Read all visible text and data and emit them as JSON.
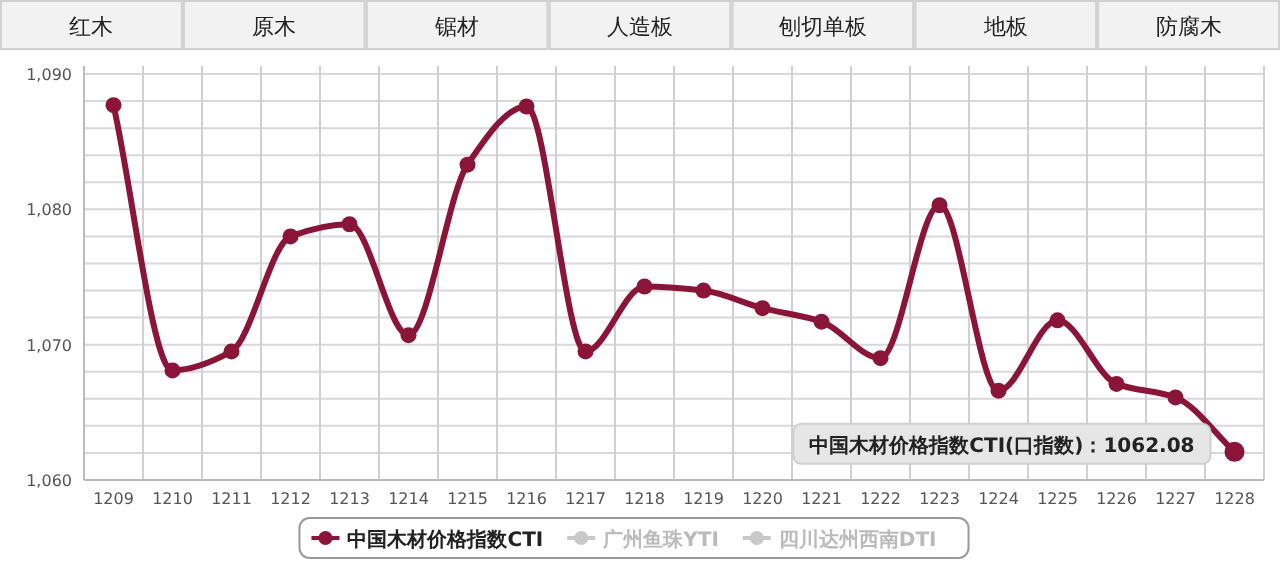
{
  "chart_data": {
    "type": "line",
    "categories": [
      "1209",
      "1210",
      "1211",
      "1212",
      "1213",
      "1214",
      "1215",
      "1216",
      "1217",
      "1218",
      "1219",
      "1220",
      "1221",
      "1222",
      "1223",
      "1224",
      "1225",
      "1226",
      "1227",
      "1228"
    ],
    "series": [
      {
        "name": "中国木材价格指数CTI",
        "color": "#8b1538",
        "values": [
          1087.7,
          1068.1,
          1069.5,
          1078.0,
          1078.9,
          1070.7,
          1083.3,
          1087.6,
          1069.5,
          1074.3,
          1074.0,
          1072.7,
          1071.7,
          1069.0,
          1080.3,
          1066.6,
          1071.8,
          1067.1,
          1066.1,
          1062.08
        ]
      },
      {
        "name": "广州鱼珠YTI",
        "color": "#c8c8c8",
        "values": [
          null,
          null,
          null,
          null,
          null,
          null,
          null,
          null,
          null,
          null,
          null,
          null,
          null,
          null,
          null,
          null,
          null,
          null,
          null,
          null
        ]
      },
      {
        "name": "四川达州西南DTI",
        "color": "#c8c8c8",
        "values": [
          null,
          null,
          null,
          null,
          null,
          null,
          null,
          null,
          null,
          null,
          null,
          null,
          null,
          null,
          null,
          null,
          null,
          null,
          null,
          null
        ]
      }
    ],
    "ylim": [
      1060,
      1090
    ],
    "yticks": [
      {
        "value": 1060,
        "label": "1,060"
      },
      {
        "value": 1062,
        "label": null
      },
      {
        "value": 1064,
        "label": null
      },
      {
        "value": 1066,
        "label": null
      },
      {
        "value": 1068,
        "label": null
      },
      {
        "value": 1070,
        "label": "1,070"
      },
      {
        "value": 1072,
        "label": null
      },
      {
        "value": 1074,
        "label": null
      },
      {
        "value": 1076,
        "label": null
      },
      {
        "value": 1078,
        "label": null
      },
      {
        "value": 1080,
        "label": "1,080"
      },
      {
        "value": 1082,
        "label": null
      },
      {
        "value": 1084,
        "label": null
      },
      {
        "value": 1086,
        "label": null
      },
      {
        "value": 1088,
        "label": null
      },
      {
        "value": 1090,
        "label": "1,090"
      }
    ],
    "grid": true,
    "legend": "bottom",
    "marker": "circle",
    "line_style": "solid",
    "annotations": [
      "红木",
      "原木",
      "锯材",
      "人造板",
      "刨切单板",
      "地板",
      "防腐木",
      {
        "text": "中国木材价格指数CTI(口指数)：1062.08",
        "x": "1228",
        "y": 1062.08
      }
    ]
  }
}
